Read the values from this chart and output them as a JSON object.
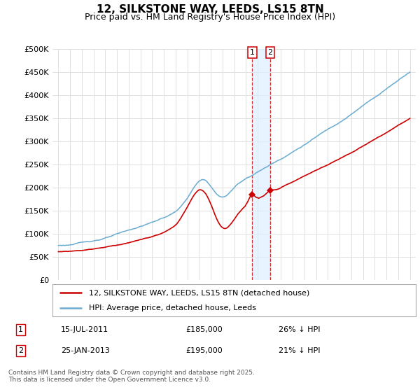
{
  "title": "12, SILKSTONE WAY, LEEDS, LS15 8TN",
  "subtitle": "Price paid vs. HM Land Registry's House Price Index (HPI)",
  "ylim": [
    0,
    500000
  ],
  "yticks": [
    0,
    50000,
    100000,
    150000,
    200000,
    250000,
    300000,
    350000,
    400000,
    450000,
    500000
  ],
  "ytick_labels": [
    "£0",
    "£50K",
    "£100K",
    "£150K",
    "£200K",
    "£250K",
    "£300K",
    "£350K",
    "£400K",
    "£450K",
    "£500K"
  ],
  "hpi_color": "#6aabd2",
  "red_color": "#cc0000",
  "point1_year": 2011.54,
  "point2_year": 2013.07,
  "point1_price": 185000,
  "point2_price": 195000,
  "legend_label_red": "12, SILKSTONE WAY, LEEDS, LS15 8TN (detached house)",
  "legend_label_blue": "HPI: Average price, detached house, Leeds",
  "annotation1_date": "15-JUL-2011",
  "annotation1_price": "£185,000",
  "annotation1_hpi": "26% ↓ HPI",
  "annotation2_date": "25-JAN-2013",
  "annotation2_price": "£195,000",
  "annotation2_hpi": "21% ↓ HPI",
  "footer": "Contains HM Land Registry data © Crown copyright and database right 2025.\nThis data is licensed under the Open Government Licence v3.0.",
  "background_color": "#ffffff",
  "grid_color": "#e0e0e0",
  "shade_color": "#ddeeff"
}
